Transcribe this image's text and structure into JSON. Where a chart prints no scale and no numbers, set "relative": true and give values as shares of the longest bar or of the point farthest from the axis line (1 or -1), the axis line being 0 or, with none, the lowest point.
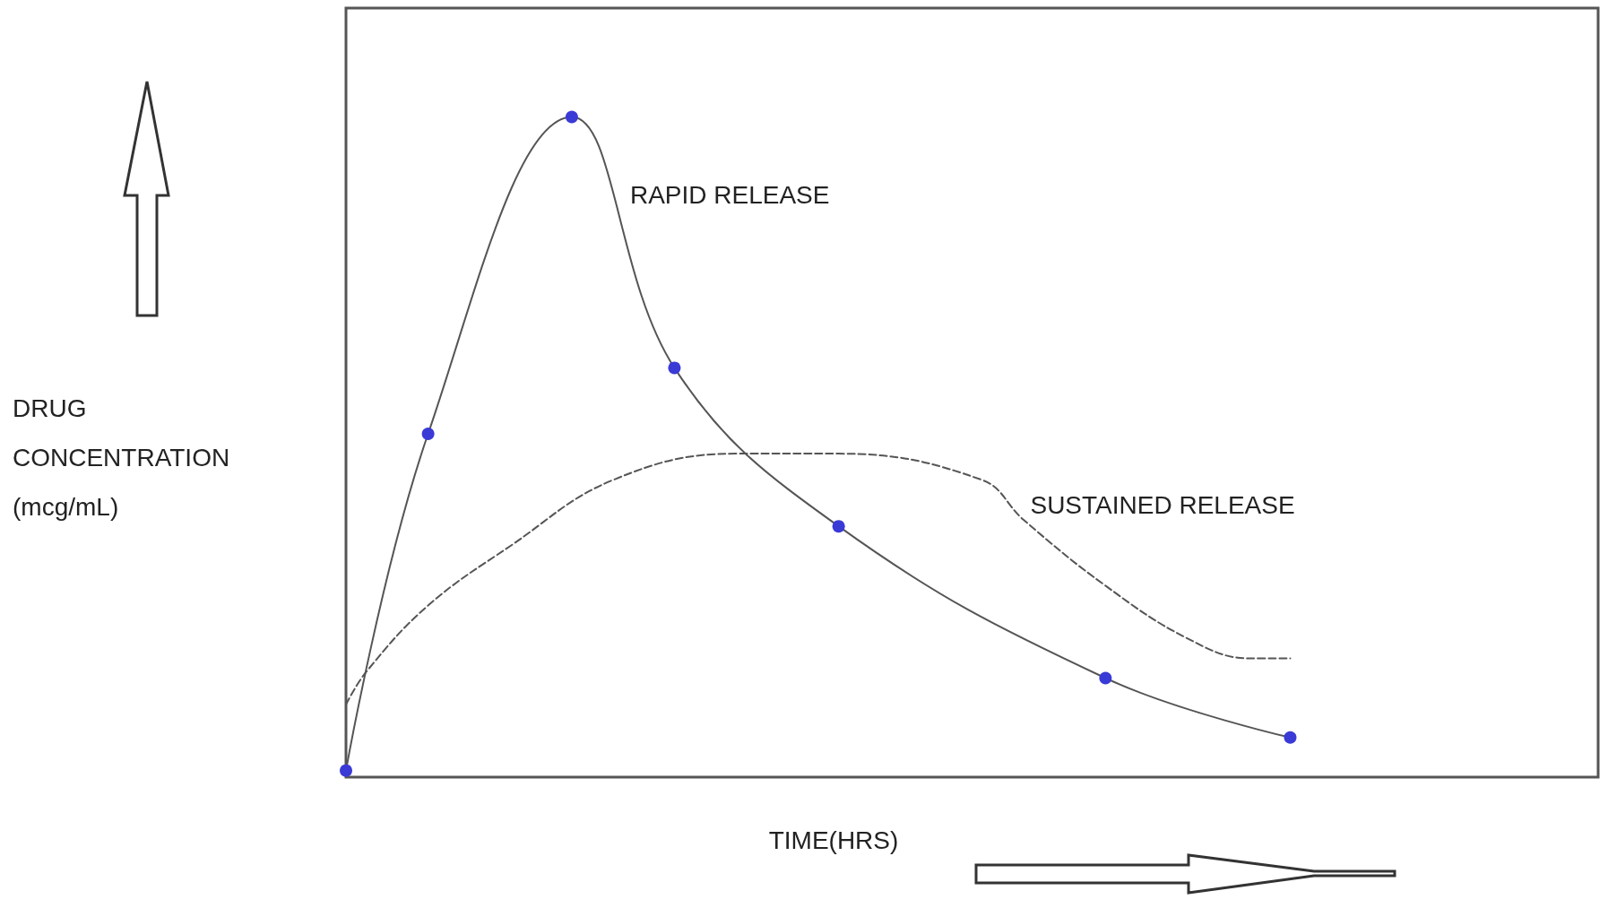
{
  "chart_data": {
    "type": "line",
    "relative": true,
    "xlabel": "TIME(HRS)",
    "ylabel": "DRUG CONCENTRATION (mcg/mL)",
    "grid": false,
    "legend": false,
    "categories": [
      null,
      null,
      null,
      null,
      null,
      null,
      null,
      null,
      null,
      null,
      null,
      null,
      null,
      null,
      null,
      null,
      null,
      null,
      null,
      null,
      null,
      null,
      null,
      null,
      null,
      null,
      null,
      null,
      null,
      null,
      null,
      null,
      null,
      null,
      null,
      null,
      null,
      null,
      null,
      null,
      null,
      null,
      null,
      null,
      null,
      null,
      null,
      null,
      null,
      null,
      null,
      null,
      null,
      null,
      null,
      null,
      null,
      null,
      null,
      null,
      null,
      null
    ],
    "series": [
      {
        "name": "RAPID RELEASE",
        "color": "#555555",
        "marker": "circle",
        "line_style": "solid",
        "values": [
          0.01,
          null,
          null,
          null,
          0.52,
          null,
          null,
          null,
          null,
          null,
          null,
          1,
          null,
          null,
          null,
          null,
          0.62,
          null,
          null,
          null,
          null,
          null,
          null,
          null,
          0.38,
          null,
          null,
          null,
          null,
          null,
          null,
          null,
          null,
          null,
          null,
          null,
          null,
          0.15,
          null,
          null,
          null,
          null,
          null,
          null,
          null,
          null,
          0.06,
          null,
          null,
          null,
          null,
          null,
          null,
          null,
          null,
          null,
          null,
          null,
          null,
          null,
          null,
          null
        ]
      },
      {
        "name": "SUSTAINED RELEASE",
        "color": "#555555",
        "marker": "none",
        "line_style": "dashed",
        "values": [
          0.11,
          0.16,
          null,
          null,
          0.26,
          null,
          null,
          null,
          0.35,
          null,
          null,
          null,
          null,
          0.45,
          null,
          null,
          null,
          null,
          null,
          0.49,
          null,
          null,
          null,
          null,
          0.49,
          null,
          null,
          null,
          null,
          null,
          null,
          0.45,
          null,
          0.39,
          null,
          null,
          null,
          0.29,
          null,
          null,
          null,
          0.21,
          null,
          null,
          0.18,
          null,
          0.18,
          null,
          null,
          null,
          null,
          null,
          null,
          null,
          null,
          null,
          null,
          null,
          null,
          null,
          null,
          null
        ]
      }
    ]
  }
}
